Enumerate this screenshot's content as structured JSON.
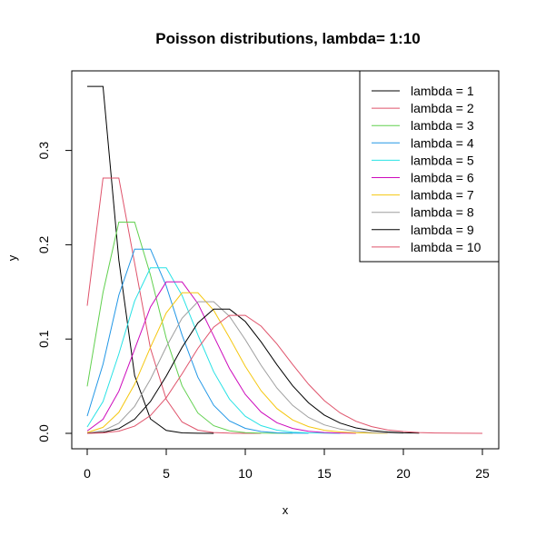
{
  "chart_data": {
    "type": "line",
    "title": "Poisson distributions, lambda= 1:10",
    "xlabel": "x",
    "ylabel": "y",
    "xlim": [
      0,
      25
    ],
    "ylim": [
      0,
      0.37
    ],
    "x_ticks": [
      0,
      5,
      10,
      15,
      20,
      25
    ],
    "x_tick_labels": [
      "0",
      "5",
      "10",
      "15",
      "20",
      "25"
    ],
    "y_ticks": [
      0.0,
      0.1,
      0.2,
      0.3
    ],
    "y_tick_labels": [
      "0.0",
      "0.1",
      "0.2",
      "0.3"
    ],
    "grid": false,
    "legend_position": "top-right",
    "series": [
      {
        "name": "lambda = 1",
        "color": "#000000",
        "x": [
          0,
          1,
          2,
          3,
          4,
          5,
          6,
          7,
          8
        ],
        "values": [
          0.3679,
          0.3679,
          0.1839,
          0.0613,
          0.0153,
          0.0031,
          0.0005,
          0.0001,
          0.0
        ]
      },
      {
        "name": "lambda = 2",
        "color": "#DF536B",
        "x": [
          0,
          1,
          2,
          3,
          4,
          5,
          6,
          7,
          8,
          9,
          10,
          11
        ],
        "values": [
          0.1353,
          0.2707,
          0.2707,
          0.1804,
          0.0902,
          0.0361,
          0.012,
          0.0034,
          0.0009,
          0.0002,
          0.0,
          0.0
        ]
      },
      {
        "name": "lambda = 3",
        "color": "#61D04F",
        "x": [
          0,
          1,
          2,
          3,
          4,
          5,
          6,
          7,
          8,
          9,
          10,
          11,
          12,
          13
        ],
        "values": [
          0.0498,
          0.1494,
          0.224,
          0.224,
          0.168,
          0.1008,
          0.0504,
          0.0216,
          0.0081,
          0.0027,
          0.0008,
          0.0002,
          0.0001,
          0.0
        ]
      },
      {
        "name": "lambda = 4",
        "color": "#2297E6",
        "x": [
          0,
          1,
          2,
          3,
          4,
          5,
          6,
          7,
          8,
          9,
          10,
          11,
          12,
          13,
          14
        ],
        "values": [
          0.0183,
          0.0733,
          0.1465,
          0.1954,
          0.1954,
          0.1563,
          0.1042,
          0.0595,
          0.0298,
          0.0132,
          0.0053,
          0.0019,
          0.0006,
          0.0002,
          0.0001
        ]
      },
      {
        "name": "lambda = 5",
        "color": "#28E2E5",
        "x": [
          0,
          1,
          2,
          3,
          4,
          5,
          6,
          7,
          8,
          9,
          10,
          11,
          12,
          13,
          14,
          15,
          16
        ],
        "values": [
          0.0067,
          0.0337,
          0.0842,
          0.1404,
          0.1755,
          0.1755,
          0.1462,
          0.1044,
          0.0653,
          0.0363,
          0.0181,
          0.0082,
          0.0034,
          0.0013,
          0.0005,
          0.0002,
          0.0
        ]
      },
      {
        "name": "lambda = 6",
        "color": "#CD0BBC",
        "x": [
          0,
          1,
          2,
          3,
          4,
          5,
          6,
          7,
          8,
          9,
          10,
          11,
          12,
          13,
          14,
          15,
          16,
          17
        ],
        "values": [
          0.0025,
          0.0149,
          0.0446,
          0.0892,
          0.1339,
          0.1606,
          0.1606,
          0.1377,
          0.1033,
          0.0688,
          0.0413,
          0.0225,
          0.0113,
          0.0052,
          0.0022,
          0.0009,
          0.0003,
          0.0001
        ]
      },
      {
        "name": "lambda = 7",
        "color": "#F5C710",
        "x": [
          0,
          1,
          2,
          3,
          4,
          5,
          6,
          7,
          8,
          9,
          10,
          11,
          12,
          13,
          14,
          15,
          16,
          17,
          18,
          19
        ],
        "values": [
          0.0009,
          0.0064,
          0.0223,
          0.0521,
          0.0912,
          0.1277,
          0.149,
          0.149,
          0.1304,
          0.1014,
          0.071,
          0.0452,
          0.0263,
          0.0142,
          0.0071,
          0.0033,
          0.0014,
          0.0006,
          0.0002,
          0.0001
        ]
      },
      {
        "name": "lambda = 8",
        "color": "#9E9E9E",
        "x": [
          0,
          1,
          2,
          3,
          4,
          5,
          6,
          7,
          8,
          9,
          10,
          11,
          12,
          13,
          14,
          15,
          16,
          17,
          18,
          19,
          20
        ],
        "values": [
          0.0003,
          0.0027,
          0.0107,
          0.0286,
          0.0573,
          0.0916,
          0.1221,
          0.1396,
          0.1396,
          0.1241,
          0.0993,
          0.0722,
          0.0481,
          0.0296,
          0.0169,
          0.009,
          0.0045,
          0.0021,
          0.0009,
          0.0004,
          0.0002
        ]
      },
      {
        "name": "lambda = 9",
        "color": "#000000",
        "x": [
          0,
          1,
          2,
          3,
          4,
          5,
          6,
          7,
          8,
          9,
          10,
          11,
          12,
          13,
          14,
          15,
          16,
          17,
          18,
          19,
          20,
          21
        ],
        "values": [
          0.0001,
          0.0011,
          0.005,
          0.015,
          0.0337,
          0.0607,
          0.0911,
          0.1171,
          0.1318,
          0.1318,
          0.1186,
          0.097,
          0.0728,
          0.0504,
          0.0324,
          0.0194,
          0.0109,
          0.0058,
          0.0029,
          0.0014,
          0.0006,
          0.0003
        ]
      },
      {
        "name": "lambda = 10",
        "color": "#DF536B",
        "x": [
          0,
          1,
          2,
          3,
          4,
          5,
          6,
          7,
          8,
          9,
          10,
          11,
          12,
          13,
          14,
          15,
          16,
          17,
          18,
          19,
          20,
          21,
          22,
          23,
          24,
          25
        ],
        "values": [
          0.0,
          0.0005,
          0.0023,
          0.0076,
          0.0189,
          0.0378,
          0.0631,
          0.0901,
          0.1126,
          0.1251,
          0.1251,
          0.1137,
          0.0948,
          0.0729,
          0.0521,
          0.0347,
          0.0217,
          0.0128,
          0.0071,
          0.0037,
          0.0019,
          0.0009,
          0.0004,
          0.0002,
          0.0001,
          0.0
        ]
      }
    ]
  }
}
